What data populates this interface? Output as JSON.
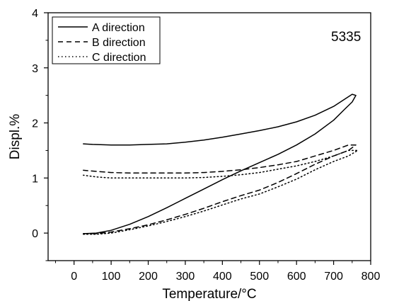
{
  "chart_data": {
    "type": "line",
    "xlabel": "Temperature/°C",
    "ylabel": "Displ.%",
    "xlim": [
      -70,
      800
    ],
    "ylim": [
      -0.5,
      4
    ],
    "xticks": [
      "0",
      "100",
      "200",
      "300",
      "400",
      "500",
      "600",
      "700",
      "800"
    ],
    "yticks": [
      "0",
      "1",
      "2",
      "3",
      "4"
    ],
    "annotation": "5335",
    "legend_position": "top-left",
    "series": [
      {
        "name": "A direction",
        "style": "solid",
        "x": [
          25,
          60,
          100,
          150,
          200,
          250,
          300,
          350,
          400,
          450,
          500,
          550,
          600,
          650,
          700,
          730,
          750,
          760,
          750,
          700,
          650,
          600,
          550,
          500,
          450,
          400,
          350,
          300,
          250,
          200,
          150,
          100,
          50,
          25
        ],
        "y": [
          -0.01,
          0.0,
          0.05,
          0.16,
          0.3,
          0.46,
          0.63,
          0.8,
          0.97,
          1.13,
          1.28,
          1.43,
          1.6,
          1.8,
          2.05,
          2.25,
          2.38,
          2.5,
          2.52,
          2.3,
          2.14,
          2.02,
          1.93,
          1.86,
          1.8,
          1.74,
          1.69,
          1.65,
          1.62,
          1.61,
          1.6,
          1.6,
          1.61,
          1.62
        ]
      },
      {
        "name": "B direction",
        "style": "dashed",
        "x": [
          25,
          60,
          100,
          150,
          200,
          250,
          300,
          350,
          400,
          450,
          500,
          550,
          600,
          650,
          700,
          740,
          760,
          740,
          700,
          650,
          600,
          550,
          500,
          450,
          400,
          350,
          300,
          250,
          200,
          150,
          100,
          60,
          25
        ],
        "y": [
          -0.01,
          -0.01,
          0.02,
          0.08,
          0.15,
          0.24,
          0.34,
          0.45,
          0.57,
          0.68,
          0.78,
          0.92,
          1.08,
          1.25,
          1.4,
          1.5,
          1.6,
          1.6,
          1.5,
          1.4,
          1.3,
          1.24,
          1.19,
          1.15,
          1.12,
          1.1,
          1.09,
          1.09,
          1.09,
          1.09,
          1.1,
          1.12,
          1.14
        ]
      },
      {
        "name": "C direction",
        "style": "dotted",
        "x": [
          25,
          60,
          100,
          150,
          200,
          250,
          300,
          350,
          400,
          450,
          500,
          550,
          600,
          650,
          700,
          740,
          765,
          740,
          700,
          650,
          600,
          550,
          500,
          450,
          400,
          350,
          300,
          250,
          200,
          150,
          100,
          60,
          25
        ],
        "y": [
          -0.02,
          -0.02,
          0.0,
          0.06,
          0.13,
          0.21,
          0.3,
          0.4,
          0.51,
          0.62,
          0.71,
          0.84,
          0.98,
          1.15,
          1.3,
          1.4,
          1.5,
          1.5,
          1.4,
          1.3,
          1.22,
          1.16,
          1.1,
          1.06,
          1.03,
          1.01,
          1.0,
          1.0,
          1.0,
          1.0,
          1.0,
          1.02,
          1.05
        ]
      }
    ]
  }
}
